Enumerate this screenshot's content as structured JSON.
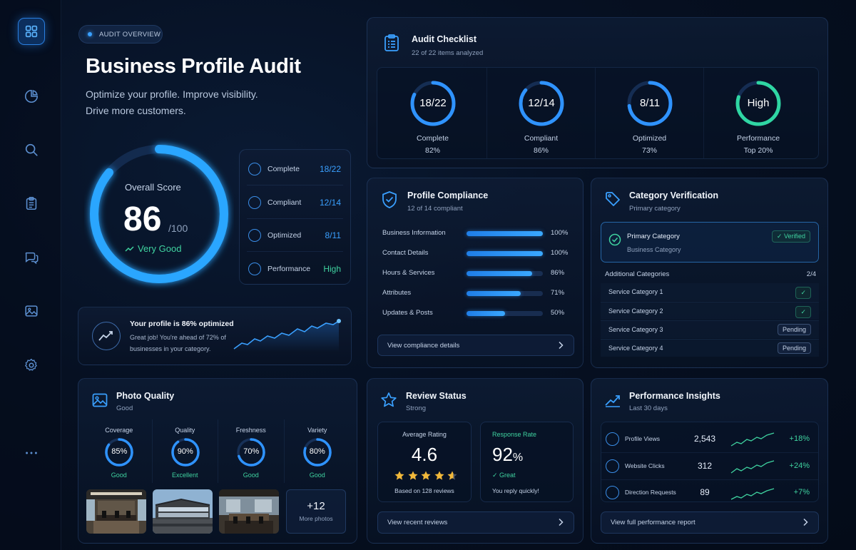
{
  "sidebar": {
    "icons": [
      "grid-icon",
      "pie-chart-icon",
      "search-icon",
      "clipboard-icon",
      "chat-icon",
      "image-icon",
      "gear-icon",
      "more-icon"
    ]
  },
  "hero": {
    "badge": "AUDIT OVERVIEW",
    "title": "Business Profile Audit",
    "subtitle_line1": "Optimize your profile. Improve visibility.",
    "subtitle_line2": "Drive more customers.",
    "score_label": "Overall Score",
    "score": "86",
    "score_max": "/100",
    "score_progress": 0.86,
    "score_status": "Very Good"
  },
  "summary": [
    {
      "label": "Complete",
      "value": "18/22",
      "color": "#3aa0ff"
    },
    {
      "label": "Compliant",
      "value": "12/14",
      "color": "#3aa0ff"
    },
    {
      "label": "Optimized",
      "value": "8/11",
      "color": "#3aa0ff"
    },
    {
      "label": "Performance",
      "value": "High",
      "color": "#3fd3a0"
    }
  ],
  "optimized_banner": {
    "title": "Your profile is 86% optimized",
    "text_line1": "Great job! You're ahead of 72% of",
    "text_line2": "businesses in your category."
  },
  "checklist": {
    "title": "Audit Checklist",
    "subtitle": "22 of 22 items analyzed",
    "rings": [
      {
        "value": "18/22",
        "label": "Complete",
        "pct": "82%",
        "progress": 0.82,
        "color": "#2f93ff"
      },
      {
        "value": "12/14",
        "label": "Compliant",
        "pct": "86%",
        "progress": 0.86,
        "color": "#2f93ff"
      },
      {
        "value": "8/11",
        "label": "Optimized",
        "pct": "73%",
        "progress": 0.73,
        "color": "#2f93ff"
      },
      {
        "value": "High",
        "label": "Performance",
        "pct": "Top 20%",
        "progress": 0.8,
        "color": "#2fd6a3"
      }
    ]
  },
  "compliance": {
    "title": "Profile Compliance",
    "subtitle": "12 of 14 compliant",
    "rows": [
      {
        "label": "Business Information",
        "pct": "100%",
        "value": 1.0
      },
      {
        "label": "Contact Details",
        "pct": "100%",
        "value": 1.0
      },
      {
        "label": "Hours & Services",
        "pct": "86%",
        "value": 0.86
      },
      {
        "label": "Attributes",
        "pct": "71%",
        "value": 0.71
      },
      {
        "label": "Updates & Posts",
        "pct": "50%",
        "value": 0.5
      }
    ],
    "button": "View compliance details"
  },
  "category": {
    "title": "Category Verification",
    "subtitle": "Primary category",
    "primary_label": "Primary Category",
    "primary_value": "Business Category",
    "verified": "Verified",
    "additional_label": "Additional Categories",
    "additional_count": "2/4",
    "items": [
      {
        "label": "Service Category 1",
        "status": "ok"
      },
      {
        "label": "Service Category 2",
        "status": "ok"
      },
      {
        "label": "Service Category 3",
        "status": "Pending"
      },
      {
        "label": "Service Category 4",
        "status": "Pending"
      }
    ]
  },
  "photos": {
    "title": "Photo Quality",
    "subtitle": "Good",
    "metrics": [
      {
        "label": "Coverage",
        "value": "85%",
        "progress": 0.85,
        "rating": "Good"
      },
      {
        "label": "Quality",
        "value": "90%",
        "progress": 0.9,
        "rating": "Excellent"
      },
      {
        "label": "Freshness",
        "value": "70%",
        "progress": 0.7,
        "rating": "Good"
      },
      {
        "label": "Variety",
        "value": "80%",
        "progress": 0.8,
        "rating": "Good"
      }
    ],
    "more_count": "+12",
    "more_label": "More photos"
  },
  "reviews": {
    "title": "Review Status",
    "subtitle": "Strong",
    "avg_label": "Average Rating",
    "avg_value": "4.6",
    "avg_stars": 4.6,
    "avg_note": "Based on 128 reviews",
    "resp_label": "Response Rate",
    "resp_value": "92",
    "resp_unit": "%",
    "resp_status": "Great",
    "resp_note": "You reply quickly!",
    "button": "View recent reviews"
  },
  "insights": {
    "title": "Performance Insights",
    "subtitle": "Last 30 days",
    "rows": [
      {
        "label": "Profile Views",
        "value": "2,543",
        "change": "+18%",
        "icon": "eye-icon"
      },
      {
        "label": "Website Clicks",
        "value": "312",
        "change": "+24%",
        "icon": "globe-icon"
      },
      {
        "label": "Direction Requests",
        "value": "89",
        "change": "+7%",
        "icon": "map-pin-icon"
      }
    ],
    "button": "View full performance report"
  }
}
